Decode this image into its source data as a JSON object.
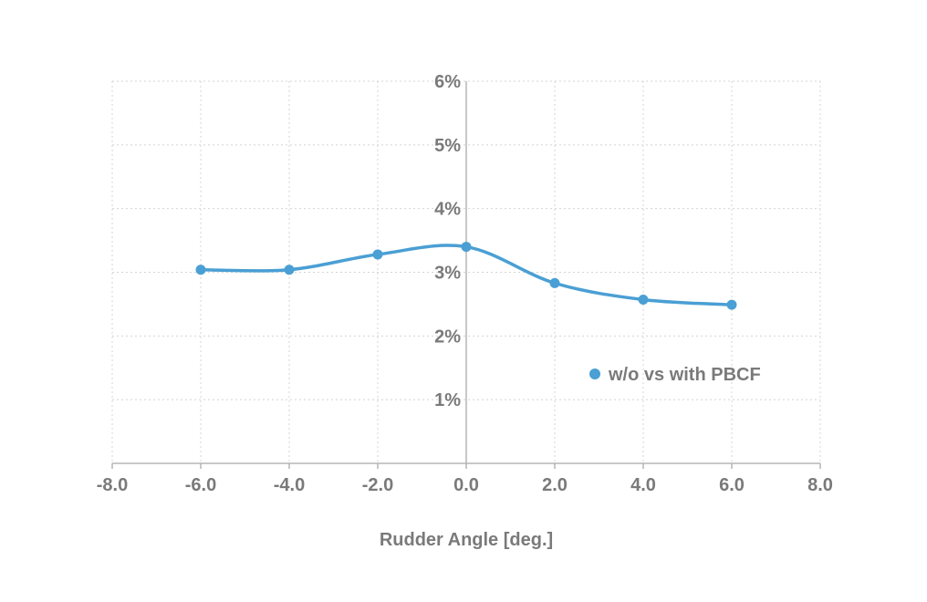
{
  "chart_data": {
    "type": "line",
    "title": "",
    "xlabel": "Rudder Angle [deg.]",
    "ylabel": "",
    "xlim": [
      -8,
      8
    ],
    "ylim": [
      0,
      0.06
    ],
    "xticks": [
      -8,
      -6,
      -4,
      -2,
      0,
      2,
      4,
      6,
      8
    ],
    "xtick_labels": [
      "-8.0",
      "-6.0",
      "-4.0",
      "-2.0",
      "0.0",
      "2.0",
      "4.0",
      "6.0",
      "8.0"
    ],
    "yticks": [
      0.01,
      0.02,
      0.03,
      0.04,
      0.05,
      0.06
    ],
    "ytick_labels": [
      "1%",
      "2%",
      "3%",
      "4%",
      "5%",
      "6%"
    ],
    "grid": true,
    "smooth": true,
    "legend_position": "right",
    "series": [
      {
        "name": "w/o vs with PBCF",
        "color": "#4a9fd4",
        "x": [
          -6,
          -4,
          -2,
          0,
          2,
          4,
          6
        ],
        "y": [
          0.0304,
          0.0304,
          0.0328,
          0.034,
          0.0283,
          0.0257,
          0.0249
        ]
      }
    ]
  }
}
